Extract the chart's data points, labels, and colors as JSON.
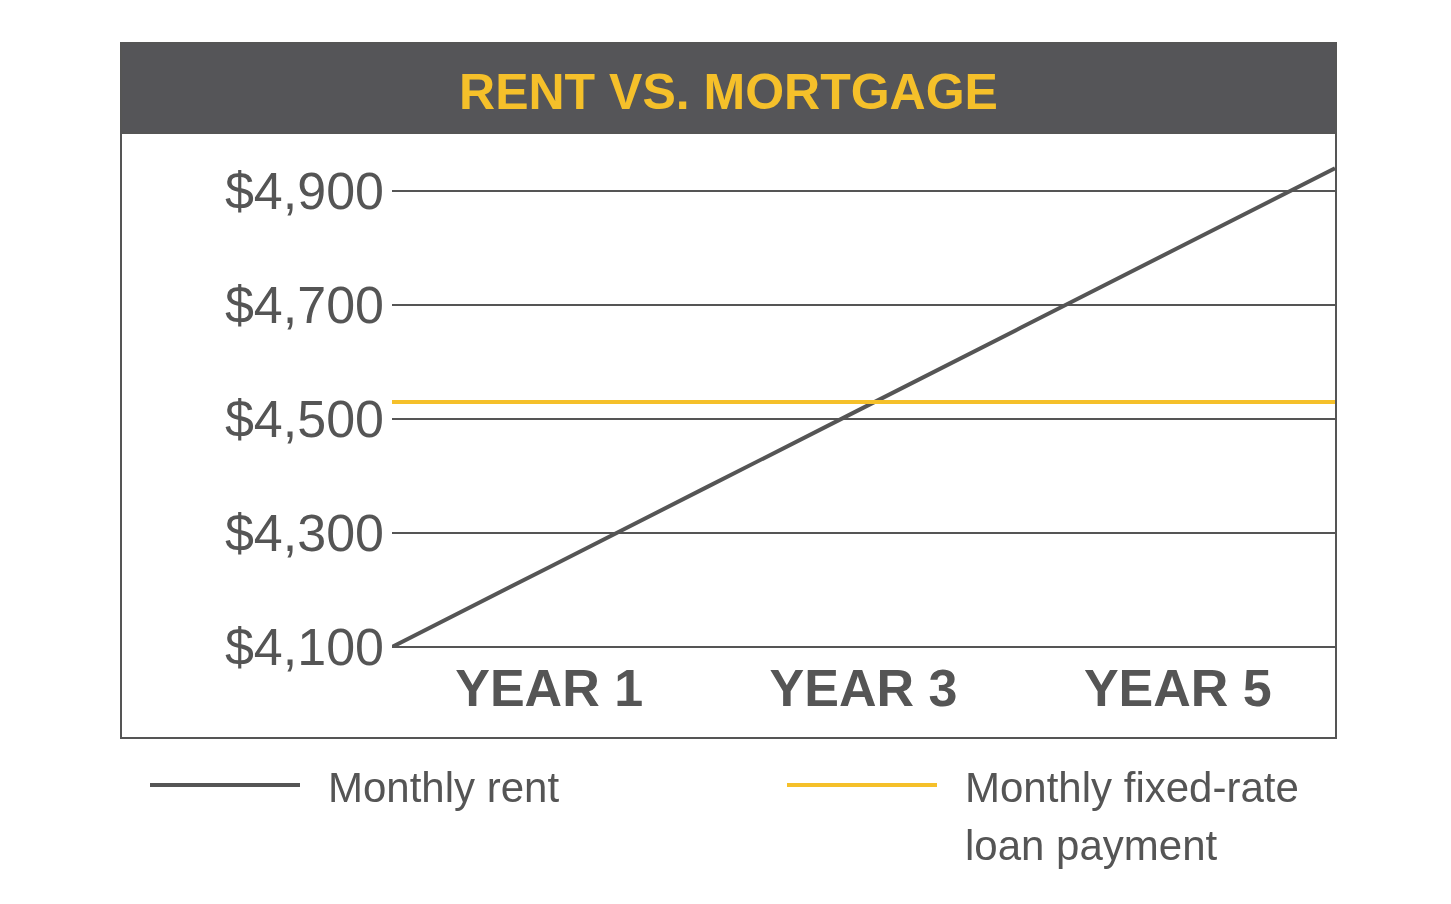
{
  "chart_data": {
    "type": "line",
    "title": "RENT VS. MORTGAGE",
    "categories": [
      null,
      "YEAR 1",
      null,
      "YEAR 3",
      null,
      "YEAR 5",
      null
    ],
    "ylim": [
      4100,
      5000
    ],
    "yticks": [
      {
        "value": 4100,
        "label": "$4,100"
      },
      {
        "value": 4300,
        "label": "$4,300"
      },
      {
        "value": 4500,
        "label": "$4,500"
      },
      {
        "value": 4700,
        "label": "$4,700"
      },
      {
        "value": 4900,
        "label": "$4,900"
      }
    ],
    "grid": "y",
    "legend": "bottom",
    "marker": "none",
    "line_style": "solid",
    "series": [
      {
        "name": "Monthly rent",
        "color": "#555555",
        "values": [
          4100,
          4240,
          4380,
          4520,
          4660,
          4800,
          4940
        ]
      },
      {
        "name": "Monthly fixed-rate loan payment",
        "color": "#f5c02a",
        "values": [
          4530,
          4530,
          4530,
          4530,
          4530,
          4530,
          4530
        ]
      }
    ]
  }
}
